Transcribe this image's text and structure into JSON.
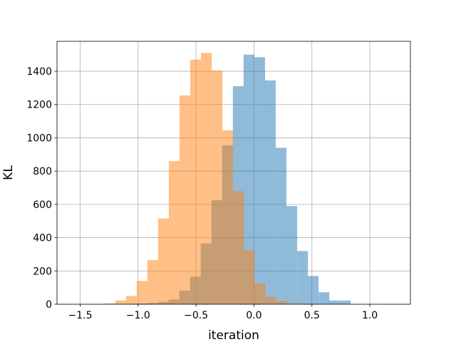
{
  "chart_data": {
    "type": "bar",
    "xlabel": "iteration",
    "ylabel": "KL",
    "xlim": [
      -1.7,
      1.35
    ],
    "ylim": [
      0,
      1580
    ],
    "grid": true,
    "x_ticks": [
      -1.5,
      -1.0,
      -0.5,
      0.0,
      0.5,
      1.0
    ],
    "x_tick_labels": [
      "−1.5",
      "−1.0",
      "−0.5",
      "0.0",
      "0.5",
      "1.0"
    ],
    "y_ticks": [
      0,
      200,
      400,
      600,
      800,
      1000,
      1200,
      1400
    ],
    "y_tick_labels": [
      "0",
      "200",
      "400",
      "600",
      "800",
      "1000",
      "1200",
      "1400"
    ],
    "bin_width": 0.0925,
    "series": [
      {
        "color": "#1f77b4",
        "opacity": 0.5,
        "bin_starts": [
          -1.2,
          -1.107,
          -1.015,
          -0.922,
          -0.83,
          -0.737,
          -0.645,
          -0.552,
          -0.46,
          -0.367,
          -0.275,
          -0.182,
          -0.09,
          0.003,
          0.095,
          0.188,
          0.28,
          0.373,
          0.465,
          0.558,
          0.65,
          0.743
        ],
        "values": [
          1,
          2,
          4,
          8,
          14,
          28,
          82,
          165,
          365,
          625,
          955,
          1310,
          1500,
          1485,
          1345,
          940,
          590,
          320,
          170,
          72,
          22,
          22
        ]
      },
      {
        "color": "#ff7f0e",
        "opacity": 0.5,
        "bin_starts": [
          -1.29,
          -1.197,
          -1.105,
          -1.012,
          -0.92,
          -0.827,
          -0.735,
          -0.642,
          -0.55,
          -0.457,
          -0.365,
          -0.272,
          -0.18,
          -0.087,
          0.005,
          0.098,
          0.19,
          0.283
        ],
        "values": [
          5,
          22,
          50,
          140,
          265,
          515,
          860,
          1255,
          1470,
          1510,
          1405,
          1045,
          680,
          325,
          125,
          45,
          20,
          6
        ]
      }
    ]
  }
}
